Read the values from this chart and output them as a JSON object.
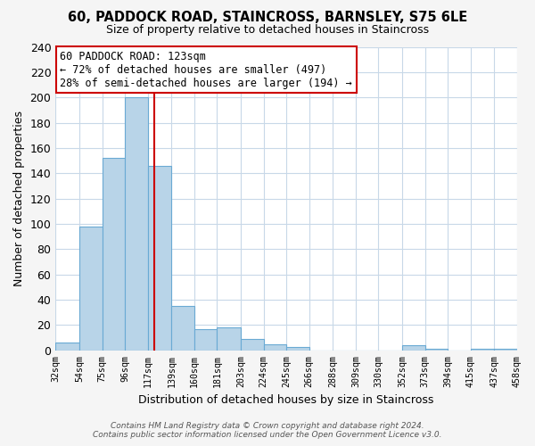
{
  "title": "60, PADDOCK ROAD, STAINCROSS, BARNSLEY, S75 6LE",
  "subtitle": "Size of property relative to detached houses in Staincross",
  "xlabel": "Distribution of detached houses by size in Staincross",
  "ylabel": "Number of detached properties",
  "bar_color": "#b8d4e8",
  "bar_edge_color": "#6aaad4",
  "bin_edges": [
    32,
    54,
    75,
    96,
    117,
    139,
    160,
    181,
    203,
    224,
    245,
    266,
    288,
    309,
    330,
    352,
    373,
    394,
    415,
    437,
    458
  ],
  "bin_labels": [
    "32sqm",
    "54sqm",
    "75sqm",
    "96sqm",
    "117sqm",
    "139sqm",
    "160sqm",
    "181sqm",
    "203sqm",
    "224sqm",
    "245sqm",
    "266sqm",
    "288sqm",
    "309sqm",
    "330sqm",
    "352sqm",
    "373sqm",
    "394sqm",
    "415sqm",
    "437sqm",
    "458sqm"
  ],
  "counts": [
    6,
    98,
    152,
    200,
    146,
    35,
    17,
    18,
    9,
    5,
    3,
    0,
    0,
    0,
    0,
    4,
    1,
    0,
    1,
    1
  ],
  "vline_x": 123,
  "vline_color": "#cc0000",
  "ylim": [
    0,
    240
  ],
  "yticks": [
    0,
    20,
    40,
    60,
    80,
    100,
    120,
    140,
    160,
    180,
    200,
    220,
    240
  ],
  "annotation_title": "60 PADDOCK ROAD: 123sqm",
  "annotation_line1": "← 72% of detached houses are smaller (497)",
  "annotation_line2": "28% of semi-detached houses are larger (194) →",
  "footer1": "Contains HM Land Registry data © Crown copyright and database right 2024.",
  "footer2": "Contains public sector information licensed under the Open Government Licence v3.0.",
  "background_color": "#f5f5f5",
  "plot_bg_color": "#ffffff",
  "grid_color": "#c8d8e8"
}
